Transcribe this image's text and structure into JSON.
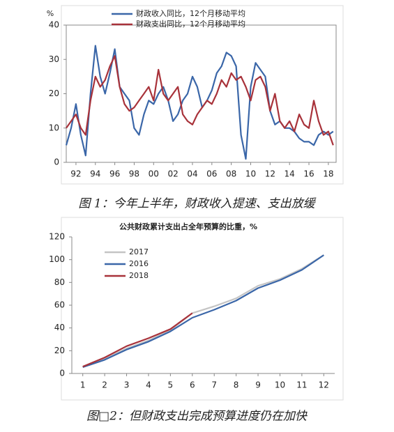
{
  "chart_data": [
    {
      "type": "line",
      "y_unit": "%",
      "caption": "图 1：今年上半年，财政收入提速、支出放缓",
      "x": [
        1991.0,
        1991.5,
        1992.0,
        1992.5,
        1993.0,
        1993.5,
        1994.0,
        1994.5,
        1995.0,
        1995.5,
        1996.0,
        1996.5,
        1997.0,
        1997.5,
        1998.0,
        1998.5,
        1999.0,
        1999.5,
        2000.0,
        2000.5,
        2001.0,
        2001.5,
        2002.0,
        2002.5,
        2003.0,
        2003.5,
        2004.0,
        2004.5,
        2005.0,
        2005.5,
        2006.0,
        2006.5,
        2007.0,
        2007.5,
        2008.0,
        2008.5,
        2009.0,
        2009.5,
        2010.0,
        2010.5,
        2011.0,
        2011.5,
        2012.0,
        2012.5,
        2013.0,
        2013.5,
        2014.0,
        2014.5,
        2015.0,
        2015.5,
        2016.0,
        2016.5,
        2017.0,
        2017.5,
        2018.0,
        2018.5
      ],
      "series": [
        {
          "name": "财政收入同比，12个月移动平均",
          "color": "#3a66a8",
          "values": [
            5,
            10,
            17,
            8,
            2,
            20,
            34,
            25,
            20,
            26,
            33,
            22,
            20,
            18,
            10,
            8,
            14,
            18,
            17,
            20,
            22,
            18,
            12,
            14,
            18,
            20,
            25,
            22,
            16,
            18,
            21,
            26,
            28,
            32,
            31,
            28,
            8,
            1,
            22,
            29,
            27,
            25,
            15,
            11,
            12,
            10,
            10,
            9,
            7,
            6,
            6,
            5,
            8,
            9,
            8,
            9
          ]
        },
        {
          "name": "财政支出同比，12个月移动平均",
          "color": "#a8323a",
          "values": [
            10,
            12,
            14,
            10,
            8,
            18,
            25,
            22,
            24,
            28,
            31,
            22,
            17,
            15,
            16,
            18,
            20,
            22,
            18,
            27,
            20,
            18,
            20,
            22,
            14,
            12,
            11,
            14,
            16,
            18,
            17,
            20,
            24,
            22,
            26,
            24,
            25,
            22,
            18,
            24,
            25,
            22,
            15,
            20,
            12,
            10,
            12,
            9,
            14,
            11,
            10,
            18,
            12,
            8,
            9,
            5
          ]
        }
      ],
      "xlim": [
        1991,
        2018.8
      ],
      "xticks": [
        {
          "value": 1992,
          "label": "92"
        },
        {
          "value": 1994,
          "label": "94"
        },
        {
          "value": 1996,
          "label": "96"
        },
        {
          "value": 1998,
          "label": "98"
        },
        {
          "value": 2000,
          "label": "00"
        },
        {
          "value": 2002,
          "label": "02"
        },
        {
          "value": 2004,
          "label": "04"
        },
        {
          "value": 2006,
          "label": "06"
        },
        {
          "value": 2008,
          "label": "08"
        },
        {
          "value": 2010,
          "label": "10"
        },
        {
          "value": 2012,
          "label": "12"
        },
        {
          "value": 2014,
          "label": "14"
        },
        {
          "value": 2016,
          "label": "16"
        },
        {
          "value": 2018,
          "label": "18"
        }
      ],
      "ylim": [
        0,
        40
      ],
      "yticks": [
        0,
        10,
        20,
        30,
        40
      ]
    },
    {
      "type": "line",
      "title": "公共财政累计支出占全年预算的比重，%",
      "caption": "图□2：但财政支出完成预算进度仍在加快",
      "x": [
        1,
        2,
        3,
        4,
        5,
        6,
        7,
        8,
        9,
        10,
        11,
        12
      ],
      "series": [
        {
          "name": "2017",
          "color": "#c4c4c4",
          "values": [
            6,
            13,
            22,
            29,
            38,
            53,
            59,
            66,
            77,
            83,
            92,
            104
          ]
        },
        {
          "name": "2016",
          "color": "#3a66a8",
          "values": [
            5.5,
            12,
            21,
            28,
            37,
            49,
            56,
            64,
            75,
            82,
            91,
            104
          ]
        },
        {
          "name": "2018",
          "color": "#a8323a",
          "values": [
            6,
            14,
            24,
            31,
            39,
            53,
            null,
            null,
            null,
            null,
            null,
            null
          ]
        }
      ],
      "xlim": [
        0.5,
        12.5
      ],
      "xticks": [
        1,
        2,
        3,
        4,
        5,
        6,
        7,
        8,
        9,
        10,
        11,
        12
      ],
      "ylim": [
        0,
        120
      ],
      "yticks": [
        0,
        20,
        40,
        60,
        80,
        100,
        120
      ]
    }
  ]
}
